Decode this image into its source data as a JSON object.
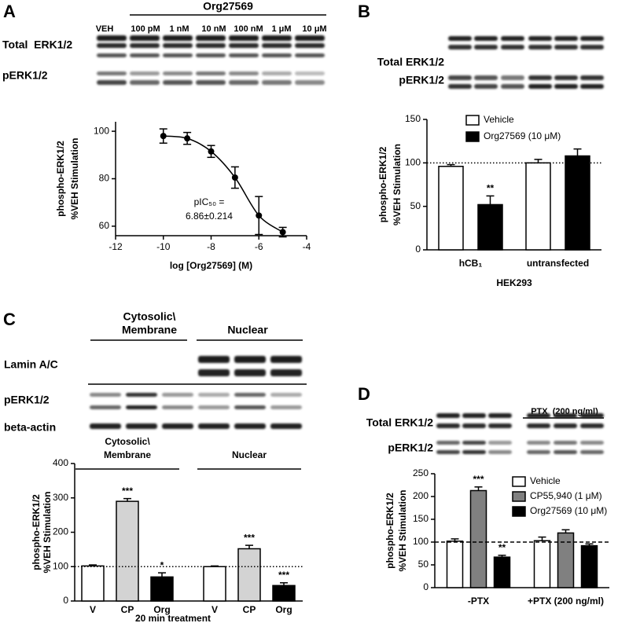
{
  "panel_labels": [
    "A",
    "B",
    "C",
    "D"
  ],
  "blots": {
    "A": {
      "header": "Org27569",
      "lanes": [
        "VEH",
        "100 pM",
        "1 nM",
        "10 nM",
        "100 nM",
        "1 μM",
        "10 μM"
      ],
      "rows": [
        "Total  ERK1/2",
        "pERK1/2"
      ]
    },
    "B": {
      "rows": [
        "Total ERK1/2",
        "pERK1/2"
      ]
    },
    "C": {
      "groups": [
        [
          "Cytosolic\\",
          "Membrane"
        ],
        [
          "Nuclear"
        ]
      ],
      "rows": [
        "Lamin A/C",
        "pERK1/2",
        "beta-actin"
      ]
    },
    "D": {
      "header": "PTX  (200 ng/ml)",
      "rows": [
        "Total ERK1/2",
        "pERK1/2"
      ]
    }
  },
  "chart_data": [
    {
      "type": "line",
      "x": [
        -10,
        -9,
        -8,
        -7,
        -6,
        -5
      ],
      "values": [
        98,
        97,
        91.5,
        80.5,
        64.5,
        57.5
      ],
      "errors": [
        3,
        2.5,
        2.5,
        4.5,
        8,
        2
      ],
      "color": "#000000",
      "xlim": [
        -12,
        -4
      ],
      "xticks": [
        -12,
        -10,
        -8,
        -6,
        -4
      ],
      "ylim": [
        56,
        104
      ],
      "yticks": [
        60,
        80,
        100
      ],
      "xlabel": "log [Org27569] (M)",
      "ylabel": [
        "phospho-ERK1/2",
        "%VEH Stimulation"
      ],
      "annotation": [
        "pIC₅₀ =",
        "6.86±0.214"
      ]
    },
    {
      "type": "bar",
      "categories": [
        "hCB₁",
        "untransfected"
      ],
      "xlabel": "HEK293",
      "series": [
        {
          "name": "Vehicle",
          "color": "#ffffff",
          "values": [
            96,
            100
          ],
          "errors": [
            2,
            4
          ],
          "significance": [
            null,
            null
          ]
        },
        {
          "name": "Org27569 (10 μM)",
          "color": "#000000",
          "values": [
            52,
            108
          ],
          "errors": [
            10,
            8
          ],
          "significance": [
            "**",
            null
          ]
        }
      ],
      "ylim": [
        0,
        150
      ],
      "yticks": [
        0,
        50,
        100,
        150
      ],
      "ylabel": [
        "phospho-ERK1/2",
        "%VEH Stimulation"
      ],
      "reference_line": {
        "value": 100,
        "style": "dotted"
      },
      "legend": "top"
    },
    {
      "type": "bar",
      "xlabel": "20 min treatment",
      "colors": [
        "#ffffff",
        "#d3d3d3",
        "#000000"
      ],
      "groups": [
        {
          "label": [
            "Cytosolic\\",
            "Membrane"
          ],
          "categories": [
            "V",
            "CP",
            "Org"
          ],
          "values": [
            102,
            290,
            70
          ],
          "errors": [
            3,
            8,
            12
          ],
          "significance": [
            null,
            "***",
            "*"
          ]
        },
        {
          "label": [
            "Nuclear"
          ],
          "categories": [
            "V",
            "CP",
            "Org"
          ],
          "values": [
            100,
            152,
            45
          ],
          "errors": [
            2,
            10,
            8
          ],
          "significance": [
            null,
            "***",
            "***"
          ]
        }
      ],
      "ylim": [
        0,
        400
      ],
      "yticks": [
        0,
        100,
        200,
        300,
        400
      ],
      "ylabel": [
        "phospho-ERK1/2",
        "%VEH Stimulation"
      ],
      "reference_line": {
        "value": 100,
        "style": "dotted"
      }
    },
    {
      "type": "bar",
      "categories": [
        "-PTX",
        "+PTX (200 ng/ml)"
      ],
      "series": [
        {
          "name": "Vehicle",
          "color": "#ffffff",
          "values": [
            102,
            103
          ],
          "errors": [
            5,
            8
          ],
          "significance": [
            null,
            null
          ]
        },
        {
          "name": "CP55,940 (1 μM)",
          "color": "#808080",
          "values": [
            213,
            120
          ],
          "errors": [
            8,
            7
          ],
          "significance": [
            "***",
            null
          ]
        },
        {
          "name": "Org27569 (10 μM)",
          "color": "#000000",
          "values": [
            67,
            92
          ],
          "errors": [
            4,
            4
          ],
          "significance": [
            "**",
            null
          ]
        }
      ],
      "ylim": [
        0,
        250
      ],
      "yticks": [
        0,
        50,
        100,
        150,
        200,
        250
      ],
      "ylabel": [
        "phospho-ERK1/2",
        "%VEH Stimulation"
      ],
      "reference_line": {
        "value": 100,
        "style": "dashed"
      },
      "legend": "top right"
    }
  ]
}
